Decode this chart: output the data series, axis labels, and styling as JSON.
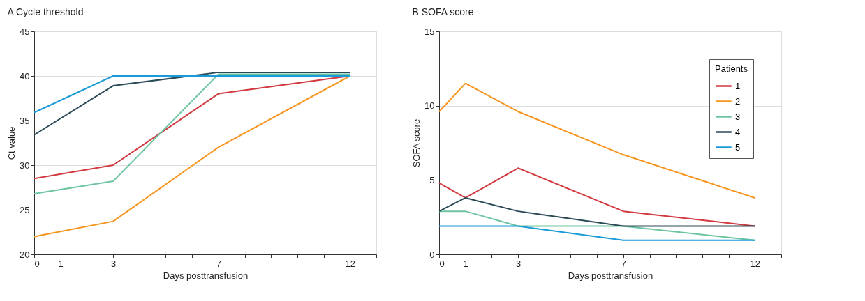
{
  "chart_data": [
    {
      "type": "line",
      "title": "A Cycle threshold",
      "xlabel": "Days posttransfusion",
      "ylabel": "Ct value",
      "x": [
        0,
        3,
        7,
        12
      ],
      "xlim": [
        0,
        13
      ],
      "xticks": [
        0,
        1,
        {
          "value": 2,
          "label": null
        },
        3,
        {
          "value": 4,
          "label": null
        },
        {
          "value": 5,
          "label": null
        },
        {
          "value": 6,
          "label": null
        },
        7,
        {
          "value": 8,
          "label": null
        },
        {
          "value": 9,
          "label": null
        },
        {
          "value": 10,
          "label": null
        },
        {
          "value": 11,
          "label": null
        },
        12,
        {
          "value": 13,
          "label": null
        }
      ],
      "ylim": [
        20,
        45
      ],
      "yticks": [
        20,
        25,
        30,
        35,
        40,
        45
      ],
      "grid": "y",
      "legend": false,
      "line_style": "solid",
      "series": [
        {
          "color": "#d2393f",
          "values": [
            28.5,
            30,
            38,
            40
          ]
        },
        {
          "color": "#f7941d",
          "values": [
            22,
            23.7,
            32,
            40
          ]
        },
        {
          "color": "#6cc5a0",
          "values": [
            26.8,
            28.2,
            40.2,
            40.2
          ]
        },
        {
          "color": "#2b4a57",
          "values": [
            33.4,
            38.9,
            40.4,
            40.4
          ]
        },
        {
          "color": "#1a9ad6",
          "values": [
            35.9,
            40,
            40,
            40
          ]
        }
      ]
    },
    {
      "type": "line",
      "title": "B SOFA score",
      "xlabel": "Days posttransfusion",
      "ylabel": "SOFA score",
      "legend_title": "Patients",
      "x": [
        0,
        1,
        3,
        7,
        12
      ],
      "xlim": [
        0,
        13
      ],
      "xticks": [
        0,
        1,
        {
          "value": 2,
          "label": null
        },
        3,
        {
          "value": 4,
          "label": null
        },
        {
          "value": 5,
          "label": null
        },
        {
          "value": 6,
          "label": null
        },
        7,
        {
          "value": 8,
          "label": null
        },
        {
          "value": 9,
          "label": null
        },
        {
          "value": 10,
          "label": null
        },
        {
          "value": 11,
          "label": null
        },
        12,
        {
          "value": 13,
          "label": null
        }
      ],
      "ylim": [
        0,
        15
      ],
      "yticks": [
        0,
        5,
        10,
        15
      ],
      "grid": "y",
      "legend": "top right",
      "line_style": "solid",
      "series": [
        {
          "name": "1",
          "color": "#d2393f",
          "values": [
            4.8,
            3.8,
            5.8,
            2.9,
            1.9
          ]
        },
        {
          "name": "2",
          "color": "#f7941d",
          "values": [
            9.6,
            11.5,
            9.6,
            6.7,
            3.8
          ]
        },
        {
          "name": "3",
          "color": "#6cc5a0",
          "values": [
            2.9,
            2.9,
            1.9,
            1.9,
            0.95
          ]
        },
        {
          "name": "4",
          "color": "#2b4a57",
          "values": [
            2.9,
            3.8,
            2.9,
            1.9,
            1.9
          ]
        },
        {
          "name": "5",
          "color": "#1a9ad6",
          "values": [
            1.9,
            1.9,
            1.9,
            0.95,
            0.95
          ]
        }
      ]
    }
  ]
}
